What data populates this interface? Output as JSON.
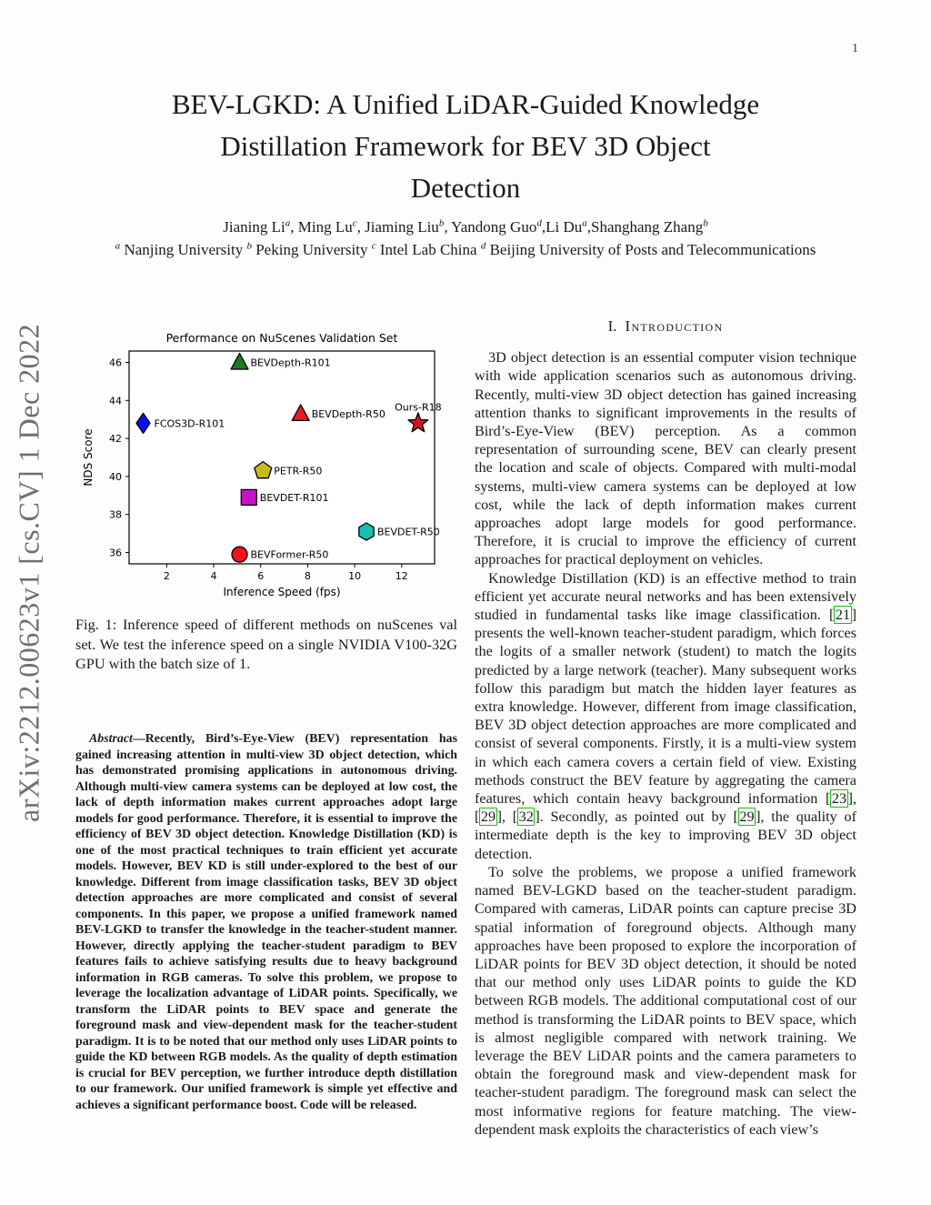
{
  "page": {
    "number": "1",
    "watermark": "arXiv:2212.00623v1  [cs.CV]  1 Dec 2022"
  },
  "header": {
    "title_lines": [
      "BEV-LGKD: A Unified LiDAR-Guided Knowledge",
      "Distillation Framework for BEV 3D Object",
      "Detection"
    ],
    "authors": [
      {
        "text": "Jianing Li",
        "sup": "a"
      },
      {
        "text": ", Ming Lu",
        "sup": "c"
      },
      {
        "text": ", Jiaming Liu",
        "sup": "b"
      },
      {
        "text": ", Yandong Guo",
        "sup": "d"
      },
      {
        "text": ",Li Du",
        "sup": "a"
      },
      {
        "text": ",Shanghang Zhang",
        "sup": "b"
      }
    ],
    "affiliations": [
      {
        "sup": "a",
        "text": " Nanjing University "
      },
      {
        "sup": "b",
        "text": " Peking University "
      },
      {
        "sup": "c",
        "text": " Intel Lab China "
      },
      {
        "sup": "d",
        "text": " Beijing University of Posts and Telecommunications"
      }
    ]
  },
  "chart_data": {
    "type": "scatter",
    "title": "Performance on NuScenes Validation Set",
    "xlabel": "Inference Speed (fps)",
    "ylabel": "NDS Score",
    "xlim": [
      0.4,
      13.4
    ],
    "ylim": [
      35.4,
      46.6
    ],
    "xticks": [
      2,
      4,
      6,
      8,
      10,
      12
    ],
    "yticks": [
      36,
      38,
      40,
      42,
      44,
      46
    ],
    "grid": false,
    "legend": "none (inline point labels)",
    "points": [
      {
        "label": "BEVDepth-R101",
        "x": 5.1,
        "y": 46.0,
        "marker": "triangle",
        "color": "#1d7a1f",
        "label_pos": "right"
      },
      {
        "label": "FCOS3D-R101",
        "x": 1.0,
        "y": 42.8,
        "marker": "diamond",
        "color": "#0d0df2",
        "label_pos": "right"
      },
      {
        "label": "BEVDepth-R50",
        "x": 7.7,
        "y": 43.3,
        "marker": "triangle",
        "color": "#ea1a1f",
        "label_pos": "right"
      },
      {
        "label": "Ours-R18",
        "x": 12.7,
        "y": 42.8,
        "marker": "star",
        "color": "#d41620",
        "label_pos": "above"
      },
      {
        "label": "PETR-R50",
        "x": 6.1,
        "y": 40.3,
        "marker": "pentagon",
        "color": "#c8ba1d",
        "label_pos": "right"
      },
      {
        "label": "BEVDET-R101",
        "x": 5.5,
        "y": 38.9,
        "marker": "square",
        "color": "#c513c5",
        "label_pos": "right"
      },
      {
        "label": "BEVDET-R50",
        "x": 10.5,
        "y": 37.1,
        "marker": "hexagon",
        "color": "#17bfb2",
        "label_pos": "right"
      },
      {
        "label": "BEVFormer-R50",
        "x": 5.1,
        "y": 35.9,
        "marker": "circle",
        "color": "#f3111b",
        "label_pos": "right"
      }
    ]
  },
  "figure": {
    "caption": "Fig. 1: Inference speed of different methods on nuScenes val set. We test the inference speed on a single NVIDIA V100-32G GPU with the batch size of 1."
  },
  "abstract": {
    "label": "Abstract",
    "text": "—Recently, Bird’s-Eye-View (BEV) representation has gained increasing attention in multi-view 3D object detection, which has demonstrated promising applications in autonomous driving. Although multi-view camera systems can be deployed at low cost, the lack of depth information makes current approaches adopt large models for good performance. Therefore, it is essential to improve the efficiency of BEV 3D object detection. Knowledge Distillation (KD) is one of the most practical techniques to train efficient yet accurate models. However, BEV KD is still under-explored to the best of our knowledge. Different from image classification tasks, BEV 3D object detection approaches are more complicated and consist of several components. In this paper, we propose a unified framework named BEV-LGKD to transfer the knowledge in the teacher-student manner. However, directly applying the teacher-student paradigm to BEV features fails to achieve satisfying results due to heavy background information in RGB cameras. To solve this problem, we propose to leverage the localization advantage of LiDAR points. Specifically, we transform the LiDAR points to BEV space and generate the foreground mask and view-dependent mask for the teacher-student paradigm. It is to be noted that our method only uses LiDAR points to guide the KD between RGB models. As the quality of depth estimation is crucial for BEV perception, we further introduce depth distillation to our framework. Our unified framework is simple yet effective and achieves a significant performance boost. Code will be released."
  },
  "introduction": {
    "heading_number": "I.",
    "heading_text": "Introduction",
    "paragraphs": [
      "3D object detection is an essential computer vision technique with wide application scenarios such as autonomous driving. Recently, multi-view 3D object detection has gained increasing attention thanks to significant improvements in the results of Bird’s-Eye-View (BEV) perception. As a common representation of surrounding scene, BEV can clearly present the location and scale of objects. Compared with multi-modal systems, multi-view camera systems can be deployed at low cost, while the lack of depth information makes current approaches adopt large models for good performance. Therefore, it is crucial to improve the efficiency of current approaches for practical deployment on vehicles.",
      "Knowledge Distillation (KD) is an effective method to train efficient yet accurate neural networks and has been extensively studied in fundamental tasks like image classification. [21] presents the well-known teacher-student paradigm, which forces the logits of a smaller network (student) to match the logits predicted by a large network (teacher). Many subsequent works follow this paradigm but match the hidden layer features as extra knowledge. However, different from image classification, BEV 3D object detection approaches are more complicated and consist of several components. Firstly, it is a multi-view system in which each camera covers a certain field of view. Existing methods construct the BEV feature by aggregating the camera features, which contain heavy background information [23], [29], [32]. Secondly, as pointed out by [29], the quality of intermediate depth is the key to improving BEV 3D object detection.",
      "To solve the problems, we propose a unified framework named BEV-LGKD based on the teacher-student paradigm. Compared with cameras, LiDAR points can capture precise 3D spatial information of foreground objects. Although many approaches have been proposed to explore the incorporation of LiDAR points for BEV 3D object detection, it should be noted that our method only uses LiDAR points to guide the KD between RGB models. The additional computational cost of our method is transforming the LiDAR points to BEV space, which is almost negligible compared with network training. We leverage the BEV LiDAR points and the camera parameters to obtain the foreground mask and view-dependent mask for teacher-student paradigm. The foreground mask can select the most informative regions for feature matching. The view-dependent mask exploits the characteristics of each view’s"
    ]
  }
}
